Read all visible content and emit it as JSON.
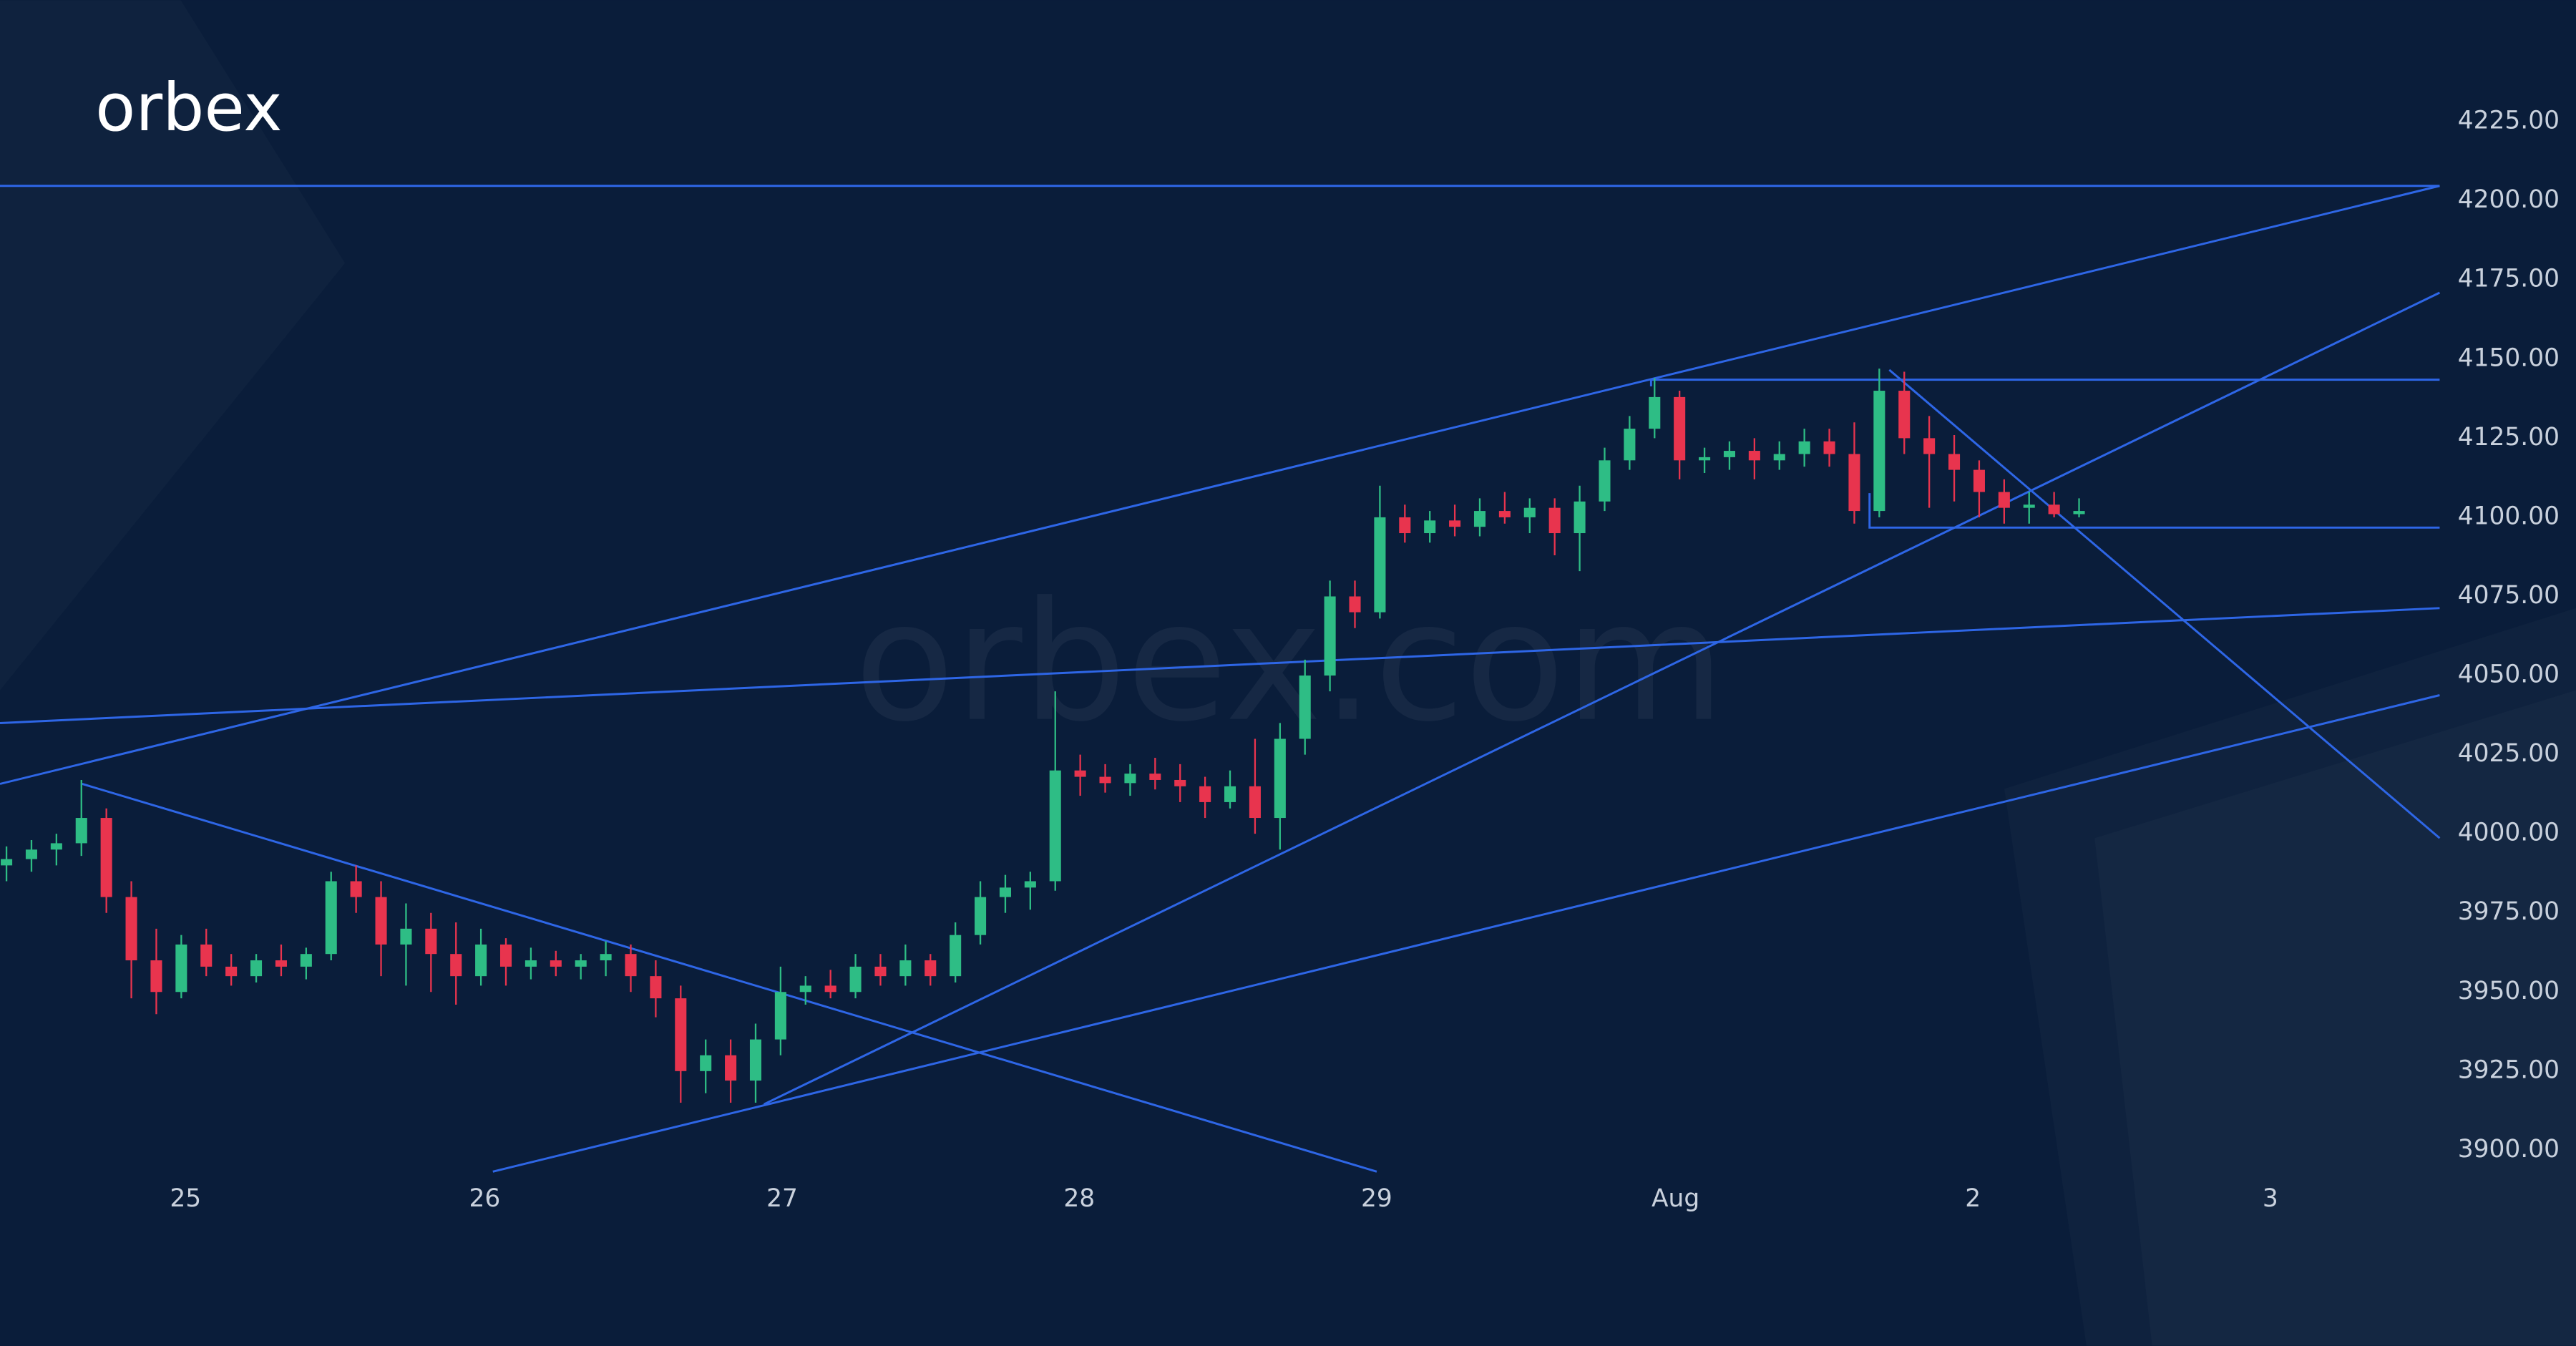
{
  "brand": {
    "logo": "orbex",
    "watermark": "orbex.com"
  },
  "chart_data": {
    "type": "candlestick",
    "up_color": "#2ebd85",
    "down_color": "#e8344e",
    "open": [
      3990,
      3992,
      3995,
      3997,
      4005,
      3980,
      3960,
      3950,
      3965,
      3958,
      3955,
      3960,
      3958,
      3962,
      3985,
      3980,
      3965,
      3970,
      3962,
      3955,
      3965,
      3958,
      3960,
      3958,
      3960,
      3962,
      3955,
      3948,
      3925,
      3930,
      3922,
      3935,
      3950,
      3952,
      3950,
      3958,
      3955,
      3960,
      3955,
      3968,
      3980,
      3983,
      3985,
      4020,
      4018,
      4016,
      4019,
      4017,
      4015,
      4010,
      4015,
      4005,
      4030,
      4050,
      4075,
      4070,
      4100,
      4095,
      4099,
      4097,
      4102,
      4100,
      4103,
      4095,
      4105,
      4118,
      4128,
      4138,
      4118,
      4119,
      4121,
      4118,
      4120,
      4124,
      4120,
      4102,
      4140,
      4125,
      4120,
      4115,
      4108,
      4103,
      4104,
      4101
    ],
    "high": [
      3996,
      3998,
      4000,
      4017,
      4008,
      3985,
      3970,
      3968,
      3970,
      3962,
      3962,
      3965,
      3964,
      3988,
      3990,
      3985,
      3978,
      3975,
      3972,
      3970,
      3967,
      3964,
      3963,
      3962,
      3966,
      3965,
      3960,
      3952,
      3935,
      3935,
      3940,
      3958,
      3955,
      3957,
      3962,
      3962,
      3965,
      3962,
      3972,
      3985,
      3987,
      3988,
      4045,
      4025,
      4022,
      4022,
      4024,
      4022,
      4018,
      4020,
      4030,
      4035,
      4055,
      4080,
      4080,
      4110,
      4104,
      4102,
      4104,
      4106,
      4108,
      4106,
      4106,
      4110,
      4122,
      4132,
      4144,
      4140,
      4122,
      4124,
      4125,
      4124,
      4128,
      4128,
      4130,
      4147,
      4146,
      4132,
      4126,
      4118,
      4112,
      4108,
      4108,
      4106
    ],
    "low": [
      3985,
      3988,
      3990,
      3993,
      3975,
      3948,
      3943,
      3948,
      3955,
      3952,
      3953,
      3955,
      3954,
      3960,
      3975,
      3955,
      3952,
      3950,
      3946,
      3952,
      3952,
      3954,
      3955,
      3954,
      3955,
      3950,
      3942,
      3915,
      3918,
      3915,
      3915,
      3930,
      3946,
      3948,
      3948,
      3952,
      3952,
      3952,
      3953,
      3965,
      3975,
      3976,
      3982,
      4012,
      4013,
      4012,
      4014,
      4010,
      4005,
      4008,
      4000,
      3995,
      4025,
      4045,
      4065,
      4068,
      4092,
      4092,
      4094,
      4094,
      4098,
      4095,
      4088,
      4083,
      4102,
      4115,
      4125,
      4112,
      4114,
      4115,
      4112,
      4115,
      4116,
      4116,
      4098,
      4100,
      4120,
      4103,
      4105,
      4100,
      4098,
      4098,
      4100,
      4100
    ],
    "close": [
      3992,
      3995,
      3997,
      4005,
      3980,
      3960,
      3950,
      3965,
      3958,
      3955,
      3960,
      3958,
      3962,
      3985,
      3980,
      3965,
      3970,
      3962,
      3955,
      3965,
      3958,
      3960,
      3958,
      3960,
      3962,
      3955,
      3948,
      3925,
      3930,
      3922,
      3935,
      3950,
      3952,
      3950,
      3958,
      3955,
      3960,
      3955,
      3968,
      3980,
      3983,
      3985,
      4020,
      4018,
      4016,
      4019,
      4017,
      4015,
      4010,
      4015,
      4005,
      4030,
      4050,
      4075,
      4070,
      4100,
      4095,
      4099,
      4097,
      4102,
      4100,
      4103,
      4095,
      4105,
      4118,
      4128,
      4138,
      4118,
      4119,
      4121,
      4118,
      4120,
      4124,
      4120,
      4102,
      4140,
      4125,
      4120,
      4115,
      4108,
      4103,
      4104,
      4101,
      4102
    ],
    "xlim": [
      -0.26,
      97.44
    ],
    "xticks": [
      {
        "value": 7.17,
        "label": "25"
      },
      {
        "value": 19.15,
        "label": "26"
      },
      {
        "value": 31.06,
        "label": "27"
      },
      {
        "value": 42.96,
        "label": "28"
      },
      {
        "value": 54.87,
        "label": "29"
      },
      {
        "value": 66.84,
        "label": "Aug"
      },
      {
        "value": 78.75,
        "label": "2"
      },
      {
        "value": 90.66,
        "label": "3"
      }
    ],
    "ylim": [
      3838.2,
      4263.4
    ],
    "yticks": [
      {
        "value": 3900,
        "label": "3900.00"
      },
      {
        "value": 3925,
        "label": "3925.00"
      },
      {
        "value": 3950,
        "label": "3950.00"
      },
      {
        "value": 3975,
        "label": "3975.00"
      },
      {
        "value": 4000,
        "label": "4000.00"
      },
      {
        "value": 4025,
        "label": "4025.00"
      },
      {
        "value": 4050,
        "label": "4050.00"
      },
      {
        "value": 4075,
        "label": "4075.00"
      },
      {
        "value": 4100,
        "label": "4100.00"
      },
      {
        "value": 4125,
        "label": "4125.00"
      },
      {
        "value": 4150,
        "label": "4150.00"
      },
      {
        "value": 4175,
        "label": "4175.00"
      },
      {
        "value": 4200,
        "label": "4200.00"
      },
      {
        "value": 4225,
        "label": "4225.00"
      }
    ]
  }
}
